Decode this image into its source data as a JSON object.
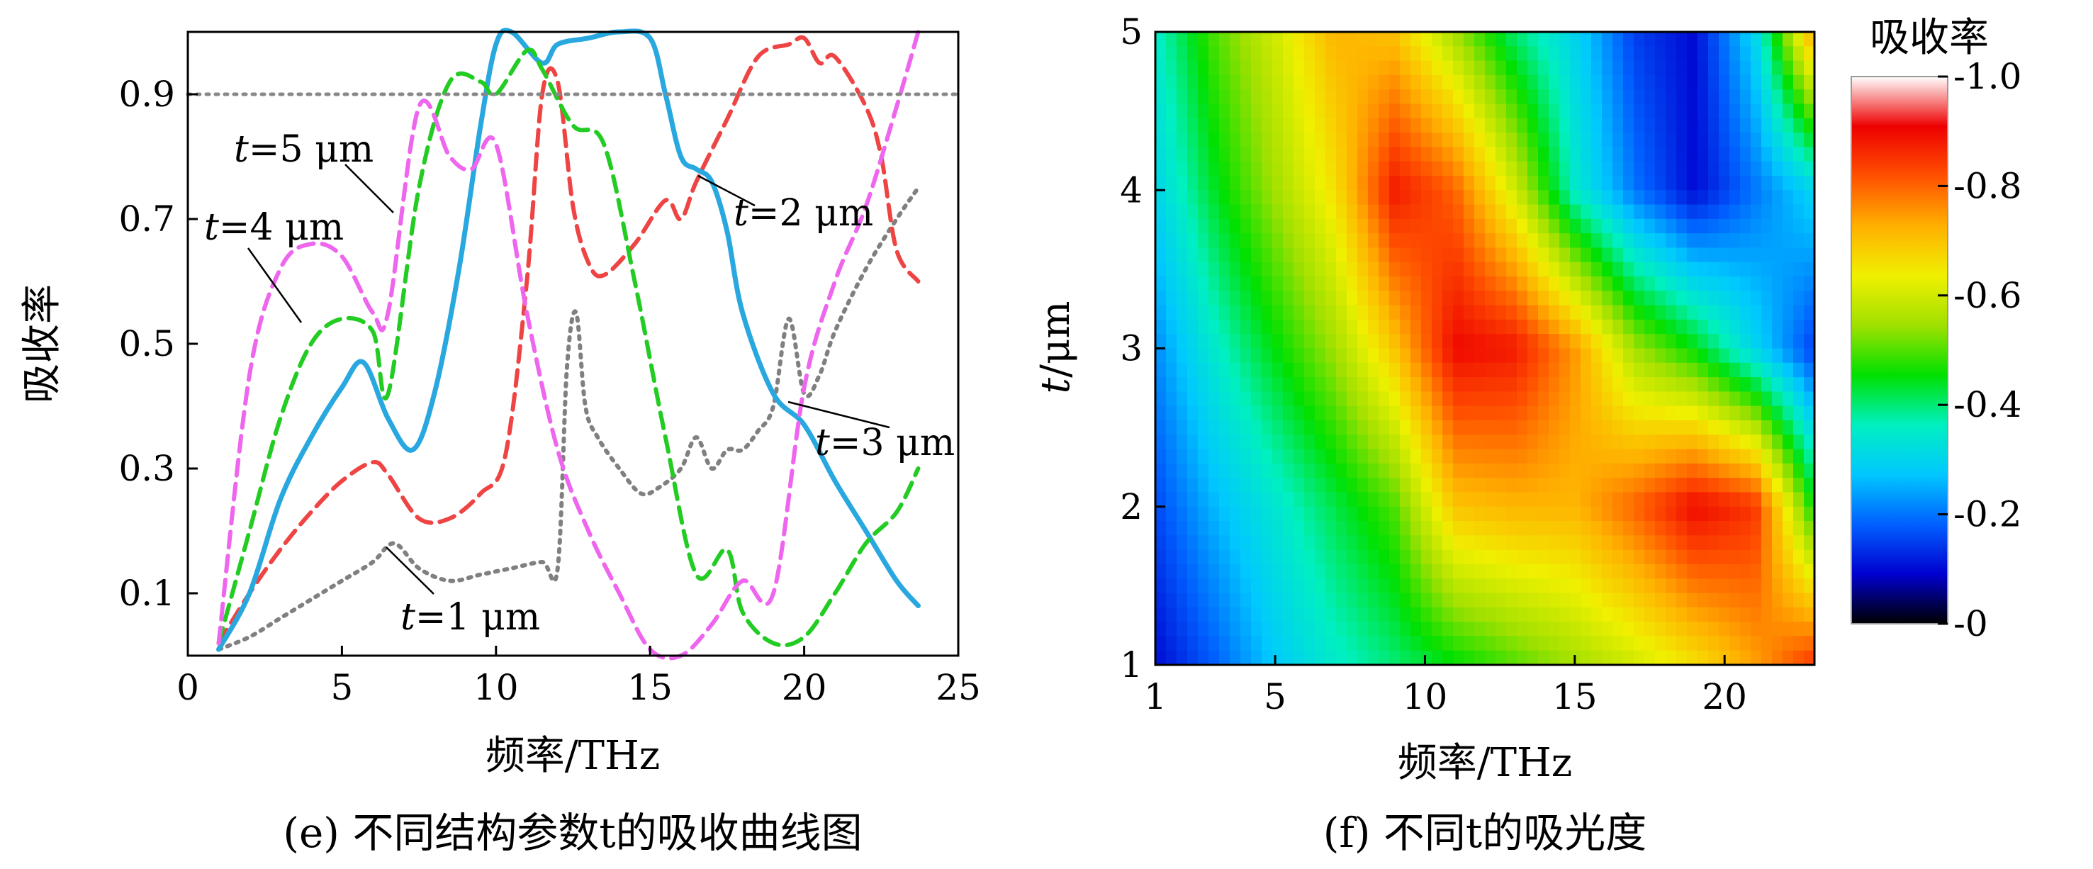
{
  "chart_data": [
    {
      "type": "line",
      "caption": "(e) 不同结构参数t的吸收曲线图",
      "xlabel": "频率/THz",
      "ylabel": "吸收率",
      "xlim": [
        0,
        25
      ],
      "ylim": [
        0,
        1.0
      ],
      "x_ticks": [
        "0",
        "5",
        "10",
        "15",
        "20",
        "25"
      ],
      "y_ticks": [
        "0.1",
        "0.3",
        "0.5",
        "0.7",
        "0.9"
      ],
      "reference_line": {
        "y": 0.9,
        "style": "dotted",
        "color": "#888888"
      },
      "legend": "none",
      "grid": false,
      "series": [
        {
          "name": "t=1 μm",
          "color": "#808080",
          "style": "dotted",
          "x": [
            1,
            2,
            3,
            4,
            5,
            6,
            6.7,
            7.5,
            8.5,
            9.5,
            10.5,
            11.5,
            12,
            12.3,
            12.6,
            12.9,
            13.3,
            14,
            14.7,
            15.3,
            16,
            16.5,
            17,
            17.5,
            18,
            18.5,
            19,
            19.5,
            20,
            20.5,
            21,
            22,
            23,
            23.7
          ],
          "y": [
            0.01,
            0.03,
            0.06,
            0.09,
            0.12,
            0.15,
            0.18,
            0.14,
            0.12,
            0.13,
            0.14,
            0.15,
            0.14,
            0.46,
            0.55,
            0.4,
            0.35,
            0.3,
            0.26,
            0.27,
            0.3,
            0.35,
            0.3,
            0.33,
            0.33,
            0.36,
            0.4,
            0.54,
            0.42,
            0.45,
            0.52,
            0.62,
            0.7,
            0.75
          ]
        },
        {
          "name": "t=2 μm",
          "color": "#ee4444",
          "style": "dashed",
          "x": [
            1,
            2,
            3,
            4,
            5,
            6,
            6.5,
            7.5,
            8.5,
            9.5,
            10.3,
            11,
            11.5,
            12,
            12.5,
            13,
            13.5,
            14.5,
            15.5,
            16,
            16.5,
            17.5,
            18.5,
            19.5,
            20,
            20.5,
            21,
            22,
            22.5,
            23,
            23.7
          ],
          "y": [
            0.02,
            0.1,
            0.17,
            0.23,
            0.28,
            0.31,
            0.29,
            0.22,
            0.22,
            0.26,
            0.32,
            0.6,
            0.9,
            0.92,
            0.72,
            0.63,
            0.61,
            0.66,
            0.73,
            0.7,
            0.76,
            0.86,
            0.96,
            0.98,
            0.99,
            0.95,
            0.96,
            0.88,
            0.8,
            0.65,
            0.6
          ]
        },
        {
          "name": "t=3 μm",
          "color": "#29a8e0",
          "style": "solid",
          "x": [
            1,
            2,
            3,
            4,
            5,
            5.7,
            6.5,
            7.3,
            8,
            8.8,
            9.5,
            10,
            10.5,
            11.5,
            12,
            13,
            14,
            15,
            15.5,
            16,
            16.5,
            17,
            17.5,
            18,
            19,
            20,
            21,
            22,
            23,
            23.7
          ],
          "y": [
            0.01,
            0.1,
            0.25,
            0.35,
            0.43,
            0.47,
            0.38,
            0.33,
            0.42,
            0.62,
            0.85,
            0.98,
            1.0,
            0.95,
            0.98,
            0.99,
            1.0,
            0.99,
            0.9,
            0.8,
            0.78,
            0.76,
            0.68,
            0.55,
            0.42,
            0.37,
            0.28,
            0.2,
            0.12,
            0.08
          ]
        },
        {
          "name": "t=4 μm",
          "color": "#22cc22",
          "style": "dashed",
          "x": [
            1,
            2,
            3,
            4,
            5,
            6,
            6.5,
            7.5,
            8.5,
            9.5,
            10,
            11,
            11.5,
            12.5,
            13.5,
            14.5,
            15.5,
            16.5,
            17.5,
            18,
            19,
            20,
            21,
            22,
            23,
            23.7
          ],
          "y": [
            0.02,
            0.2,
            0.38,
            0.5,
            0.54,
            0.52,
            0.42,
            0.75,
            0.92,
            0.92,
            0.9,
            0.97,
            0.94,
            0.85,
            0.82,
            0.6,
            0.35,
            0.13,
            0.17,
            0.07,
            0.02,
            0.03,
            0.1,
            0.18,
            0.23,
            0.3
          ]
        },
        {
          "name": "t=5 μm",
          "color": "#ee66ee",
          "style": "dashed",
          "x": [
            1,
            2,
            3,
            4,
            5,
            6,
            6.5,
            7.5,
            8.5,
            9.2,
            10,
            11,
            12,
            13,
            14,
            15,
            16,
            17,
            18,
            19,
            20,
            21,
            22,
            23,
            23.7
          ],
          "y": [
            0.02,
            0.45,
            0.62,
            0.66,
            0.64,
            0.55,
            0.55,
            0.88,
            0.8,
            0.78,
            0.82,
            0.55,
            0.33,
            0.2,
            0.1,
            0.01,
            0.0,
            0.05,
            0.12,
            0.1,
            0.43,
            0.6,
            0.72,
            0.88,
            1.0
          ]
        }
      ],
      "annotations": [
        {
          "t": "t",
          "rest": "=1 μm"
        },
        {
          "t": "t",
          "rest": "=2 μm"
        },
        {
          "t": "t",
          "rest": "=3 μm"
        },
        {
          "t": "t",
          "rest": "=4 μm"
        },
        {
          "t": "t",
          "rest": "=5 μm"
        }
      ]
    },
    {
      "type": "heatmap",
      "caption": "(f) 不同t的吸光度",
      "xlabel": "频率/THz",
      "ylabel": "t/μm",
      "xlim": [
        1,
        23
      ],
      "ylim": [
        1,
        5
      ],
      "x_ticks": [
        "1",
        "5",
        "10",
        "15",
        "20"
      ],
      "y_ticks": [
        "1",
        "2",
        "3",
        "4",
        "5"
      ],
      "colorbar": {
        "title": "吸收率",
        "ticks": [
          "0",
          "0.2",
          "0.4",
          "0.6",
          "0.8",
          "1.0"
        ],
        "range": [
          0,
          1.0
        ],
        "colors": [
          "#000000",
          "#0000d0",
          "#0060ff",
          "#00c8ff",
          "#00f0c0",
          "#00e000",
          "#a0e000",
          "#f0f000",
          "#ffb000",
          "#ff5000",
          "#ee0000",
          "#ffffff"
        ]
      },
      "x": [
        1,
        3,
        5,
        7,
        9,
        11,
        13,
        15,
        17,
        19,
        21,
        23
      ],
      "y": [
        1,
        2,
        3,
        4,
        5
      ],
      "z": [
        [
          0.1,
          0.18,
          0.28,
          0.35,
          0.4,
          0.45,
          0.5,
          0.55,
          0.6,
          0.66,
          0.74,
          0.85
        ],
        [
          0.16,
          0.26,
          0.34,
          0.42,
          0.5,
          0.7,
          0.72,
          0.72,
          0.8,
          0.9,
          0.85,
          0.45
        ],
        [
          0.22,
          0.35,
          0.45,
          0.55,
          0.7,
          0.9,
          0.88,
          0.75,
          0.55,
          0.45,
          0.3,
          0.15
        ],
        [
          0.3,
          0.44,
          0.55,
          0.66,
          0.88,
          0.8,
          0.6,
          0.35,
          0.2,
          0.1,
          0.2,
          0.3
        ],
        [
          0.35,
          0.5,
          0.6,
          0.72,
          0.7,
          0.55,
          0.4,
          0.3,
          0.15,
          0.1,
          0.3,
          0.75
        ]
      ]
    }
  ]
}
